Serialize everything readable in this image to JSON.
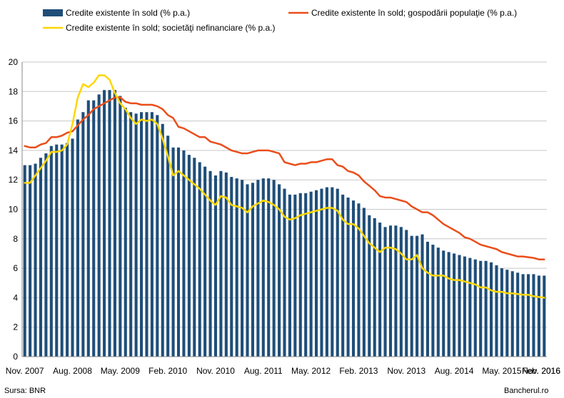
{
  "chart_data": {
    "type": "bar",
    "legend": {
      "placement": "top",
      "items": [
        {
          "label": "Credite existente în sold (% p.a.)",
          "marker": "bar"
        },
        {
          "label": "Credite existente în sold; gospodării populaţie (% p.a.)",
          "marker": "line"
        },
        {
          "label": "Credite existente în sold; societăţi nefinanciare (% p.a.)",
          "marker": "line"
        }
      ]
    },
    "x_tick_labels": [
      "Nov. 2007",
      "Aug. 2008",
      "May. 2009",
      "Feb. 2010",
      "Nov. 2010",
      "Aug. 2011",
      "May. 2012",
      "Feb. 2013",
      "Nov. 2013",
      "Aug. 2014",
      "May. 2015",
      "Feb. 2016",
      "Nov. 2016"
    ],
    "ylim": [
      0,
      20
    ],
    "yticks": [
      0,
      2,
      4,
      6,
      8,
      10,
      12,
      14,
      16,
      18,
      20
    ],
    "grid": "horizontal",
    "start_month": "Nov. 2007",
    "series": [
      {
        "name": "Credite existente în sold (% p.a.)",
        "type": "bar",
        "color": "#1F4E79",
        "values": [
          13.0,
          13.0,
          13.1,
          13.5,
          13.8,
          14.3,
          14.4,
          14.4,
          14.5,
          14.8,
          16.1,
          16.6,
          17.4,
          17.4,
          17.8,
          18.1,
          18.1,
          18.1,
          17.7,
          16.9,
          16.6,
          16.5,
          16.6,
          16.6,
          16.6,
          16.4,
          15.8,
          15.0,
          14.2,
          14.2,
          14.0,
          13.7,
          13.5,
          13.2,
          12.9,
          12.6,
          12.3,
          12.6,
          12.5,
          12.2,
          12.1,
          12.0,
          11.7,
          11.8,
          12.0,
          12.1,
          12.1,
          12.0,
          11.7,
          11.4,
          11.0,
          11.0,
          11.1,
          11.1,
          11.2,
          11.3,
          11.4,
          11.5,
          11.5,
          11.4,
          11.0,
          10.8,
          10.6,
          10.4,
          10.1,
          9.6,
          9.4,
          9.1,
          8.8,
          8.9,
          8.9,
          8.8,
          8.6,
          8.2,
          8.2,
          8.3,
          7.8,
          7.6,
          7.4,
          7.2,
          7.1,
          7.0,
          6.9,
          6.8,
          6.7,
          6.6,
          6.5,
          6.5,
          6.4,
          6.2,
          6.0,
          5.9,
          5.8,
          5.7,
          5.6,
          5.6,
          5.6,
          5.5,
          5.5
        ]
      },
      {
        "name": "Credite existente în sold; gospodării populaţie (% p.a.)",
        "type": "line",
        "color": "#E94E1B",
        "values": [
          14.3,
          14.2,
          14.2,
          14.4,
          14.5,
          14.9,
          14.9,
          15.0,
          15.2,
          15.3,
          15.7,
          16.1,
          16.4,
          16.8,
          17.0,
          17.2,
          17.4,
          17.6,
          17.6,
          17.3,
          17.2,
          17.2,
          17.1,
          17.1,
          17.1,
          17.0,
          16.8,
          16.4,
          16.2,
          15.6,
          15.5,
          15.3,
          15.1,
          14.9,
          14.9,
          14.6,
          14.5,
          14.4,
          14.2,
          14.0,
          13.9,
          13.8,
          13.8,
          13.9,
          14.0,
          14.0,
          14.0,
          13.9,
          13.8,
          13.2,
          13.1,
          13.0,
          13.1,
          13.1,
          13.2,
          13.2,
          13.3,
          13.4,
          13.4,
          13.0,
          12.9,
          12.6,
          12.5,
          12.3,
          11.9,
          11.6,
          11.3,
          10.9,
          10.8,
          10.8,
          10.7,
          10.6,
          10.5,
          10.2,
          10.0,
          9.8,
          9.8,
          9.6,
          9.3,
          9.0,
          8.8,
          8.6,
          8.4,
          8.1,
          8.0,
          7.8,
          7.6,
          7.5,
          7.4,
          7.3,
          7.1,
          7.0,
          6.9,
          6.8,
          6.8,
          6.75,
          6.7,
          6.6,
          6.6
        ]
      },
      {
        "name": "Credite existente în sold; societăţi nefinanciare (% p.a.)",
        "type": "line",
        "color": "#FFD600",
        "values": [
          11.8,
          11.8,
          12.3,
          12.8,
          13.3,
          13.9,
          13.9,
          14.0,
          14.4,
          15.8,
          17.6,
          18.5,
          18.3,
          18.6,
          19.1,
          19.1,
          18.8,
          17.9,
          17.2,
          16.8,
          16.2,
          15.8,
          16.1,
          16.0,
          16.1,
          15.8,
          14.8,
          13.6,
          12.3,
          12.6,
          12.3,
          12.0,
          11.7,
          11.4,
          11.0,
          10.6,
          10.3,
          10.9,
          10.8,
          10.3,
          10.2,
          10.1,
          9.8,
          10.2,
          10.4,
          10.6,
          10.5,
          10.3,
          10.0,
          9.5,
          9.3,
          9.4,
          9.6,
          9.7,
          9.8,
          9.9,
          10.0,
          10.1,
          10.1,
          9.9,
          9.3,
          9.0,
          9.0,
          8.7,
          8.2,
          7.7,
          7.4,
          7.1,
          7.4,
          7.4,
          7.3,
          7.0,
          6.6,
          6.6,
          6.9,
          6.0,
          5.7,
          5.5,
          5.5,
          5.5,
          5.3,
          5.2,
          5.2,
          5.1,
          5.0,
          4.9,
          4.7,
          4.7,
          4.5,
          4.4,
          4.4,
          4.3,
          4.3,
          4.25,
          4.2,
          4.2,
          4.1,
          4.05,
          4.0
        ]
      }
    ]
  },
  "footer": {
    "source": "Sursa: BNR",
    "brand": "Bancherul.ro"
  }
}
